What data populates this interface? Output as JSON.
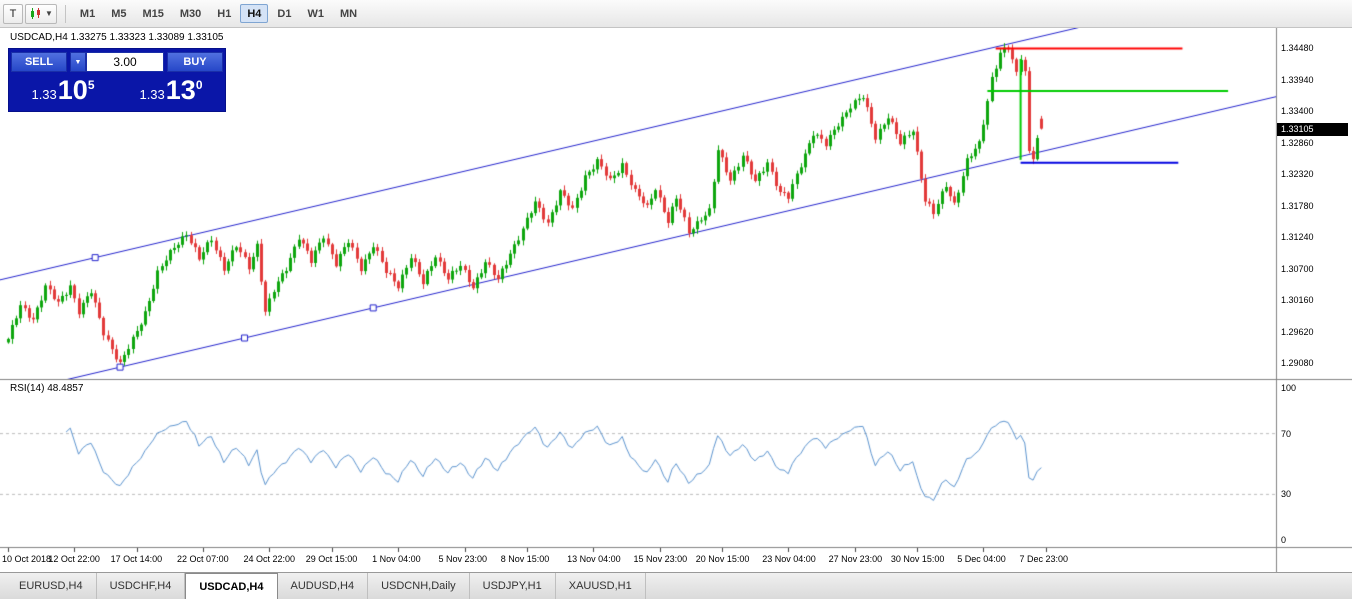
{
  "toolbar": {
    "template_button_label": "T",
    "timeframes": [
      {
        "label": "M1",
        "active": false
      },
      {
        "label": "M5",
        "active": false
      },
      {
        "label": "M15",
        "active": false
      },
      {
        "label": "M30",
        "active": false
      },
      {
        "label": "H1",
        "active": false
      },
      {
        "label": "H4",
        "active": true
      },
      {
        "label": "D1",
        "active": false
      },
      {
        "label": "W1",
        "active": false
      },
      {
        "label": "MN",
        "active": false
      }
    ]
  },
  "chart": {
    "symbol_info": "USDCAD,H4 1.33275 1.33323 1.33089 1.33105",
    "one_click": {
      "sell_label": "SELL",
      "buy_label": "BUY",
      "volume": "3.00",
      "sell_price": {
        "prefix": "1.33",
        "big": "10",
        "sup": "5"
      },
      "buy_price": {
        "prefix": "1.33",
        "big": "13",
        "sup": "0"
      }
    },
    "current_price": "1.33105",
    "price_axis": [
      "1.34480",
      "1.33940",
      "1.33400",
      "1.32860",
      "1.32320",
      "1.31780",
      "1.31240",
      "1.30700",
      "1.30160",
      "1.29620",
      "1.29080"
    ],
    "rsi_label": "RSI(14) 48.4857",
    "rsi_axis": [
      "100",
      "70",
      "30",
      "0"
    ],
    "date_axis": [
      {
        "label": "10 Oct 2018",
        "i": 0
      },
      {
        "label": "12 Oct 22:00",
        "i": 16
      },
      {
        "label": "17 Oct 14:00",
        "i": 31
      },
      {
        "label": "22 Oct 07:00",
        "i": 47
      },
      {
        "label": "24 Oct 22:00",
        "i": 63
      },
      {
        "label": "29 Oct 15:00",
        "i": 78
      },
      {
        "label": "1 Nov 04:00",
        "i": 94
      },
      {
        "label": "5 Nov 23:00",
        "i": 110
      },
      {
        "label": "8 Nov 15:00",
        "i": 125
      },
      {
        "label": "13 Nov 04:00",
        "i": 141
      },
      {
        "label": "15 Nov 23:00",
        "i": 157
      },
      {
        "label": "20 Nov 15:00",
        "i": 172
      },
      {
        "label": "23 Nov 04:00",
        "i": 188
      },
      {
        "label": "27 Nov 23:00",
        "i": 204
      },
      {
        "label": "30 Nov 15:00",
        "i": 219
      },
      {
        "label": "5 Dec 04:00",
        "i": 235
      },
      {
        "label": "7 Dec 23:00",
        "i": 250
      }
    ]
  },
  "chart_data": {
    "type": "candlestick",
    "symbol": "USDCAD",
    "timeframe": "H4",
    "indicator": {
      "name": "RSI",
      "period": 14,
      "current": 48.4857,
      "levels": [
        30,
        70
      ]
    },
    "candles_count": 250,
    "price_top": 1.3483,
    "price_span": 0.06,
    "ohlc_current": {
      "open": 1.33275,
      "high": 1.33323,
      "low": 1.33089,
      "close": 1.33105
    },
    "close_anchors": [
      [
        0,
        1.295
      ],
      [
        3,
        1.3005
      ],
      [
        6,
        1.2985
      ],
      [
        9,
        1.304
      ],
      [
        12,
        1.301
      ],
      [
        15,
        1.3042
      ],
      [
        17,
        1.2998
      ],
      [
        20,
        1.303
      ],
      [
        23,
        1.2962
      ],
      [
        27,
        1.2906
      ],
      [
        30,
        1.2948
      ],
      [
        33,
        1.2996
      ],
      [
        36,
        1.3062
      ],
      [
        40,
        1.3108
      ],
      [
        43,
        1.3132
      ],
      [
        46,
        1.3086
      ],
      [
        49,
        1.3122
      ],
      [
        52,
        1.3072
      ],
      [
        55,
        1.3108
      ],
      [
        58,
        1.3074
      ],
      [
        60,
        1.3112
      ],
      [
        62,
        1.2996
      ],
      [
        64,
        1.3032
      ],
      [
        67,
        1.3072
      ],
      [
        70,
        1.3126
      ],
      [
        73,
        1.3082
      ],
      [
        76,
        1.3128
      ],
      [
        79,
        1.308
      ],
      [
        82,
        1.3116
      ],
      [
        85,
        1.3072
      ],
      [
        88,
        1.3112
      ],
      [
        91,
        1.3064
      ],
      [
        94,
        1.3042
      ],
      [
        97,
        1.3092
      ],
      [
        100,
        1.3044
      ],
      [
        103,
        1.3094
      ],
      [
        106,
        1.3054
      ],
      [
        109,
        1.3074
      ],
      [
        112,
        1.304
      ],
      [
        115,
        1.3082
      ],
      [
        118,
        1.305
      ],
      [
        121,
        1.3098
      ],
      [
        124,
        1.3138
      ],
      [
        127,
        1.3182
      ],
      [
        130,
        1.315
      ],
      [
        133,
        1.3202
      ],
      [
        136,
        1.317
      ],
      [
        139,
        1.323
      ],
      [
        142,
        1.3254
      ],
      [
        145,
        1.322
      ],
      [
        148,
        1.325
      ],
      [
        151,
        1.3202
      ],
      [
        154,
        1.3174
      ],
      [
        156,
        1.321
      ],
      [
        159,
        1.3152
      ],
      [
        161,
        1.319
      ],
      [
        164,
        1.3134
      ],
      [
        167,
        1.3158
      ],
      [
        169,
        1.3168
      ],
      [
        171,
        1.3272
      ],
      [
        174,
        1.3224
      ],
      [
        177,
        1.3264
      ],
      [
        180,
        1.3218
      ],
      [
        183,
        1.3254
      ],
      [
        186,
        1.32
      ],
      [
        188,
        1.3192
      ],
      [
        191,
        1.325
      ],
      [
        194,
        1.3304
      ],
      [
        197,
        1.3282
      ],
      [
        200,
        1.332
      ],
      [
        203,
        1.335
      ],
      [
        206,
        1.3364
      ],
      [
        209,
        1.3297
      ],
      [
        212,
        1.3332
      ],
      [
        215,
        1.3284
      ],
      [
        218,
        1.331
      ],
      [
        221,
        1.3188
      ],
      [
        223,
        1.3164
      ],
      [
        226,
        1.3214
      ],
      [
        228,
        1.3182
      ],
      [
        231,
        1.3254
      ],
      [
        234,
        1.3284
      ],
      [
        237,
        1.3398
      ],
      [
        239,
        1.344
      ],
      [
        241,
        1.3448
      ],
      [
        243,
        1.3404
      ],
      [
        244,
        1.3434
      ],
      [
        245,
        1.341
      ],
      [
        246,
        1.3272
      ],
      [
        247,
        1.3264
      ],
      [
        248,
        1.3292
      ],
      [
        249,
        1.33105
      ]
    ],
    "channel": {
      "lower_p0": 1.28567,
      "upper_p0": 1.30544,
      "slope_per_candle": 0.00016643,
      "handles": [
        {
          "line": "upper",
          "i": 21
        },
        {
          "line": "lower",
          "i": 27
        },
        {
          "line": "lower",
          "i": 57
        },
        {
          "line": "lower",
          "i": 88
        }
      ]
    },
    "hlines": [
      {
        "price": 1.3448,
        "i0": 238,
        "i1": 283,
        "color": "#ff0000",
        "width": 2
      },
      {
        "price": 1.3375,
        "i0": 236,
        "i1": 294,
        "color": "#00cc00",
        "width": 2
      },
      {
        "price": 1.3252,
        "i0": 244,
        "i1": 282,
        "color": "#0000e0",
        "width": 2
      }
    ],
    "vline": {
      "i": 244,
      "p0": 1.343,
      "p1": 1.3257,
      "color": "#00cc00",
      "width": 2
    },
    "colors": {
      "up": "#0ea60e",
      "down": "#e23a3a",
      "channel": "#2222cc",
      "rsi": "#5b93ce",
      "grid_dash": "#bbbbbb",
      "axis_line": "#808080"
    }
  },
  "tabs": [
    {
      "label": "EURUSD,H4",
      "active": false
    },
    {
      "label": "USDCHF,H4",
      "active": false
    },
    {
      "label": "USDCAD,H4",
      "active": true
    },
    {
      "label": "AUDUSD,H4",
      "active": false
    },
    {
      "label": "USDCNH,Daily",
      "active": false
    },
    {
      "label": "USDJPY,H1",
      "active": false
    },
    {
      "label": "XAUUSD,H1",
      "active": false
    }
  ]
}
